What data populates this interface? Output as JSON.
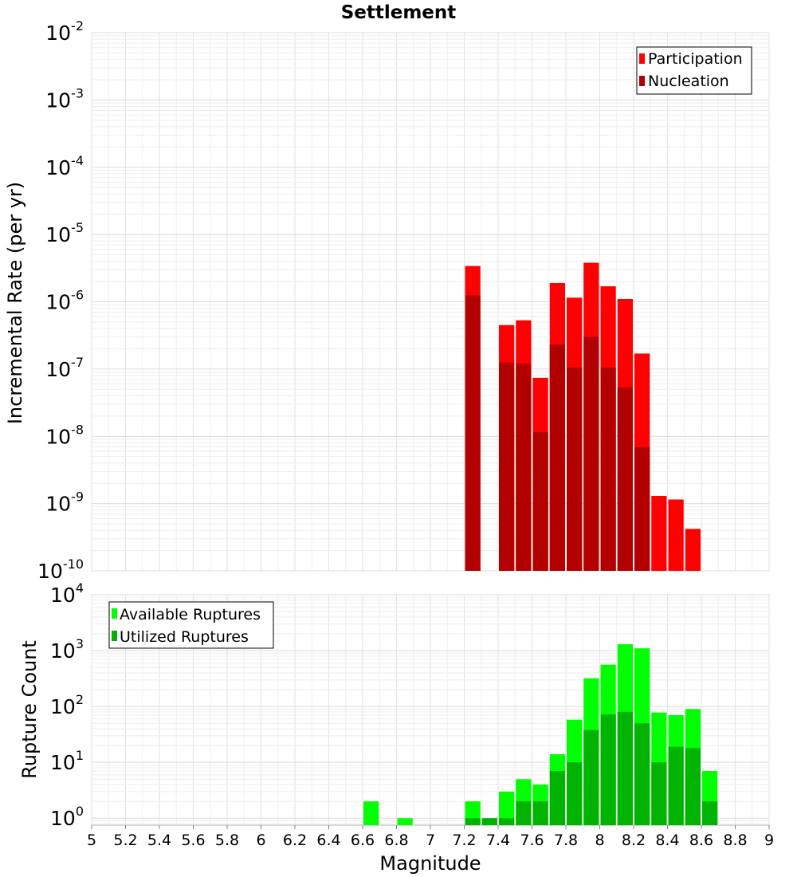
{
  "chart_data": [
    {
      "type": "bar",
      "title": "Settlement",
      "xlabel": "",
      "ylabel": "Incremental Rate (per yr)",
      "xlim": [
        5,
        9
      ],
      "ylim": [
        1e-10,
        0.01
      ],
      "yscale": "log",
      "grid": true,
      "bar_width": 0.1,
      "legend": {
        "placement": "top-right",
        "entries": [
          "Participation",
          "Nucleation"
        ]
      },
      "colors": {
        "Participation": "#ff0000",
        "Nucleation": "#b20000"
      },
      "x": [
        7.25,
        7.45,
        7.55,
        7.65,
        7.75,
        7.85,
        7.95,
        8.05,
        8.15,
        8.25,
        8.35,
        8.45,
        8.55
      ],
      "series": [
        {
          "name": "Participation",
          "values": [
            3.4e-06,
            4.5e-07,
            5.3e-07,
            7.4e-08,
            1.9e-06,
            1.15e-06,
            3.8e-06,
            1.7e-06,
            1.1e-06,
            1.7e-07,
            1.3e-09,
            1.15e-09,
            4.2e-10
          ]
        },
        {
          "name": "Nucleation",
          "values": [
            1.25e-06,
            1.25e-07,
            1.2e-07,
            1.15e-08,
            2.3e-07,
            1.05e-07,
            3e-07,
            1.05e-07,
            5.3e-08,
            6.9e-09,
            null,
            null,
            null
          ]
        }
      ]
    },
    {
      "type": "bar",
      "title": "",
      "xlabel": "Magnitude",
      "ylabel": "Rupture Count",
      "xlim": [
        5,
        9
      ],
      "ylim": [
        0.75,
        10000
      ],
      "yscale": "log",
      "grid": true,
      "bar_width": 0.1,
      "xticks": [
        "5",
        "5.2",
        "5.4",
        "5.6",
        "5.8",
        "6",
        "6.2",
        "6.4",
        "6.6",
        "6.8",
        "7",
        "7.2",
        "7.4",
        "7.6",
        "7.8",
        "8",
        "8.2",
        "8.4",
        "8.6",
        "8.8",
        "9"
      ],
      "legend": {
        "placement": "top-left",
        "entries": [
          "Available Ruptures",
          "Utilized Ruptures"
        ]
      },
      "colors": {
        "Available Ruptures": "#00ff00",
        "Utilized Ruptures": "#00b300"
      },
      "x": [
        6.65,
        6.85,
        7.25,
        7.35,
        7.45,
        7.55,
        7.65,
        7.75,
        7.85,
        7.95,
        8.05,
        8.15,
        8.25,
        8.35,
        8.45,
        8.55,
        8.65
      ],
      "series": [
        {
          "name": "Available Ruptures",
          "values": [
            2,
            1,
            2,
            1,
            3,
            5,
            4,
            14,
            58,
            320,
            560,
            1300,
            1100,
            78,
            70,
            90,
            7
          ]
        },
        {
          "name": "Utilized Ruptures",
          "values": [
            null,
            null,
            1,
            1,
            1,
            2,
            2,
            7,
            10,
            38,
            72,
            80,
            50,
            10,
            19,
            18,
            2
          ]
        }
      ]
    }
  ]
}
